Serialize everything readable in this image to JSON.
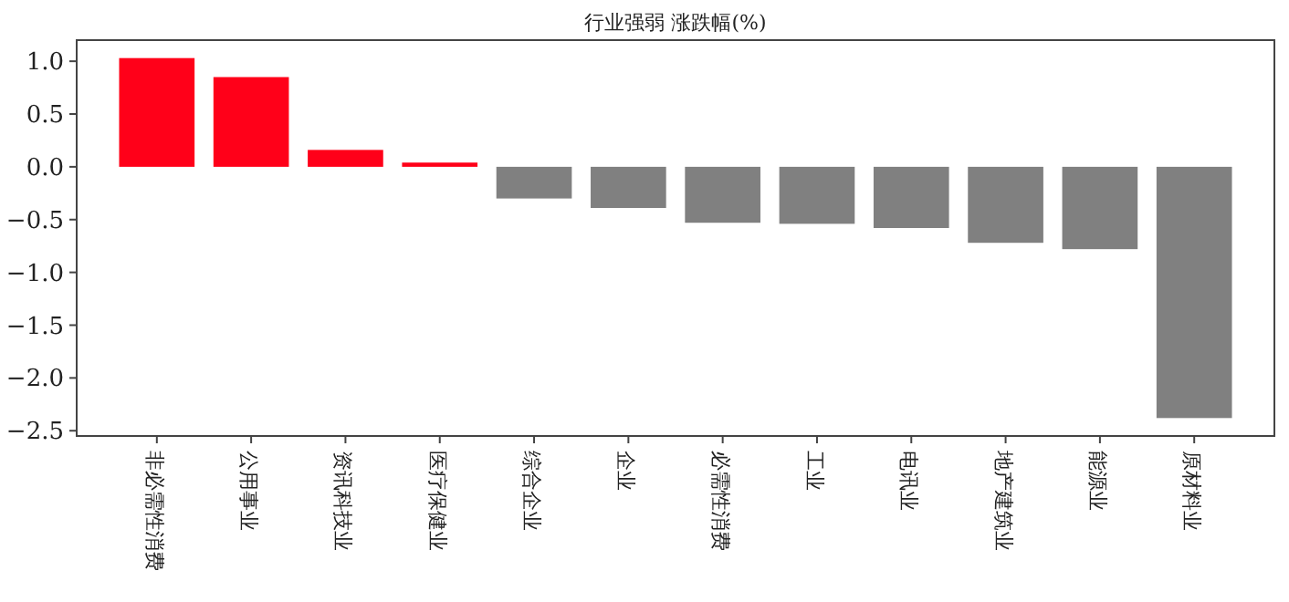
{
  "chart_data": {
    "type": "bar",
    "title": "行业强弱 涨跌幅(%)",
    "categories": [
      "非必需性消费",
      "公用事业",
      "资讯科技业",
      "医疗保健业",
      "综合企业",
      "企业",
      "必需性消费",
      "工业",
      "电讯业",
      "地产建筑业",
      "能源业",
      "原材料业"
    ],
    "values": [
      1.03,
      0.85,
      0.16,
      0.04,
      -0.3,
      -0.39,
      -0.53,
      -0.54,
      -0.58,
      -0.72,
      -0.78,
      -2.38
    ],
    "colors": [
      "#ff0019",
      "#ff0019",
      "#ff0019",
      "#ff0019",
      "#808080",
      "#808080",
      "#808080",
      "#808080",
      "#808080",
      "#808080",
      "#808080",
      "#808080"
    ],
    "ylim": [
      -2.55,
      1.2
    ],
    "yticks": [
      {
        "value": 1,
        "label": "1.0"
      },
      {
        "value": 0.5,
        "label": "0.5"
      },
      {
        "value": 0,
        "label": "0.0"
      },
      {
        "value": -0.5,
        "label": "−0.5"
      },
      {
        "value": -1,
        "label": "−1.0"
      },
      {
        "value": -1.5,
        "label": "−1.5"
      },
      {
        "value": -2,
        "label": "−2.0"
      },
      {
        "value": -2.5,
        "label": "−2.5"
      }
    ],
    "grid": false
  }
}
